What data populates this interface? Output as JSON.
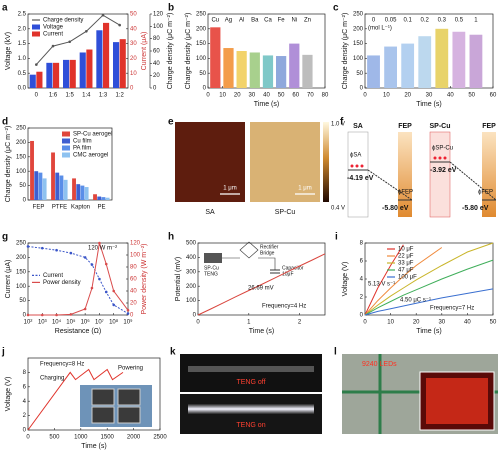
{
  "chart_data": [
    {
      "label": "a",
      "type": "bar",
      "categories": [
        "0",
        "1:6",
        "1:5",
        "1:4",
        "1:3",
        "1:2"
      ],
      "series": [
        {
          "name": "Charge density",
          "type": "line",
          "color": "#555555",
          "axis": "y3",
          "values": [
            38,
            68,
            75,
            92,
            118,
            102
          ]
        },
        {
          "name": "Voltage",
          "color": "#2f4fd8",
          "axis": "y",
          "values": [
            0.45,
            0.85,
            0.95,
            1.2,
            1.95,
            1.55
          ]
        },
        {
          "name": "Current",
          "color": "#e0332b",
          "axis": "y2",
          "values": [
            11,
            17,
            19,
            26,
            44,
            33
          ]
        }
      ],
      "ylabel": "Voltage (kV)",
      "y2label": "Current (μA)",
      "y3label": "Charge density (μC m⁻²)",
      "ylim": [
        0,
        2.5
      ],
      "yticks": [
        {
          "value": 0,
          "label": "0.0"
        },
        0.5,
        {
          "value": 1,
          "label": "1.0"
        },
        1.5,
        {
          "value": 2,
          "label": "2.0"
        },
        2.5
      ],
      "y2lim": [
        0,
        50
      ],
      "y2ticks": [
        0,
        10,
        20,
        30,
        40,
        50
      ],
      "y3lim": [
        0,
        120
      ],
      "y3ticks": [
        0,
        20,
        40,
        60,
        80,
        100,
        120
      ],
      "legend": "top-left",
      "markers": true
    },
    {
      "label": "b",
      "type": "bar",
      "categories": [
        "Cu",
        "Ag",
        "Al",
        "Ba",
        "Ca",
        "Fe",
        "Ni",
        "Zn"
      ],
      "x": [
        5,
        14,
        23,
        32,
        41,
        50,
        59,
        68
      ],
      "values": [
        205,
        135,
        125,
        120,
        110,
        108,
        150,
        112
      ],
      "colors": [
        "#e8534a",
        "#f39c4a",
        "#f2d36a",
        "#a8d08d",
        "#7fc8c8",
        "#8fa8dc",
        "#b08fd8",
        "#bdbdbd"
      ],
      "xlabel": "Time (s)",
      "ylabel": "Charge density (μC m⁻²)",
      "xlim": [
        0,
        80
      ],
      "xticks": [
        0,
        10,
        20,
        30,
        40,
        50,
        60,
        70,
        80
      ],
      "ylim": [
        0,
        250
      ],
      "yticks": [
        0,
        50,
        100,
        150,
        200,
        250
      ]
    },
    {
      "label": "c",
      "type": "bar",
      "categories": [
        "0",
        "0.05",
        "0.1",
        "0.2",
        "0.3",
        "0.5",
        "1"
      ],
      "x": [
        4,
        12,
        20,
        28,
        36,
        44,
        52
      ],
      "values": [
        110,
        140,
        150,
        175,
        200,
        190,
        180
      ],
      "colors": [
        "#9fb8e8",
        "#a9c4ec",
        "#b3d0f0",
        "#bcd8ee",
        "#e8d36a",
        "#d6b3e0",
        "#c9a6d8"
      ],
      "annotations": [
        "(mol L⁻¹)"
      ],
      "xlabel": "Time (s)",
      "ylabel": "Charge density (μC m⁻²)",
      "xlim": [
        0,
        60
      ],
      "xticks": [
        0,
        10,
        20,
        30,
        40,
        50,
        60
      ],
      "ylim": [
        0,
        250
      ],
      "yticks": [
        0,
        50,
        100,
        150,
        200,
        250
      ]
    },
    {
      "label": "d",
      "type": "bar",
      "categories": [
        "FEP",
        "PTFE",
        "Kapton",
        "PE"
      ],
      "series": [
        {
          "name": "SP-Cu aerogel",
          "color": "#e0463c",
          "values": [
            205,
            165,
            75,
            20
          ]
        },
        {
          "name": "Cu film",
          "color": "#3f5fd0",
          "values": [
            100,
            95,
            55,
            12
          ]
        },
        {
          "name": "PA film",
          "color": "#5a8ee8",
          "values": [
            95,
            85,
            50,
            10
          ]
        },
        {
          "name": "CMC aerogel",
          "color": "#8ec2f0",
          "values": [
            75,
            70,
            45,
            8
          ]
        }
      ],
      "ylabel": "Charge density (μC m⁻²)",
      "ylim": [
        0,
        250
      ],
      "yticks": [
        0,
        50,
        100,
        150,
        200,
        250
      ],
      "legend": "top-right"
    },
    {
      "label": "g",
      "type": "line",
      "xlog": true,
      "x": [
        100,
        1000,
        10000,
        100000,
        1000000,
        3000000,
        10000000,
        30000000,
        100000000,
        1000000000
      ],
      "series": [
        {
          "name": "Current",
          "color": "#3a55c8",
          "axis": "y",
          "dash": true,
          "values": [
            238,
            232,
            225,
            215,
            200,
            175,
            125,
            80,
            35,
            5
          ]
        },
        {
          "name": "Power density",
          "color": "#d94c4c",
          "axis": "y2",
          "values": [
            0,
            0,
            0,
            1,
            10,
            45,
            120,
            85,
            40,
            8
          ]
        }
      ],
      "xlim": [
        100,
        1000000000
      ],
      "xticks": [
        {
          "value": 100,
          "label": "10²"
        },
        {
          "value": 1000,
          "label": "10³"
        },
        {
          "value": 10000,
          "label": "10⁴"
        },
        {
          "value": 100000,
          "label": "10⁵"
        },
        {
          "value": 1000000,
          "label": "10⁶"
        },
        {
          "value": 10000000,
          "label": "10⁷"
        },
        {
          "value": 100000000,
          "label": "10⁸"
        },
        {
          "value": 1000000000,
          "label": "10⁹"
        }
      ],
      "ylim": [
        0,
        250
      ],
      "yticks": [
        0,
        50,
        100,
        150,
        200,
        250
      ],
      "y2lim": [
        0,
        120
      ],
      "y2ticks": [
        0,
        20,
        40,
        60,
        80,
        100,
        120
      ],
      "xlabel": "Resistance (Ω)",
      "ylabel": "Current (μA)",
      "y2label": "Power density (W m⁻²)",
      "annotations": [
        "120 W m⁻²"
      ],
      "legend": "left",
      "markers": true
    },
    {
      "label": "h",
      "type": "line",
      "x": [
        0,
        0.25,
        0.5,
        0.75,
        1,
        1.25,
        1.5,
        1.75,
        2,
        2.25,
        2.5
      ],
      "series": [
        {
          "color": "#d9453d",
          "values": [
            0,
            42,
            85,
            128,
            170,
            212,
            255,
            298,
            340,
            382,
            425
          ]
        }
      ],
      "xlim": [
        0,
        2.5
      ],
      "xticks": [
        0,
        1,
        2
      ],
      "ylim": [
        0,
        500
      ],
      "yticks": [
        0,
        100,
        200,
        300,
        400,
        500
      ],
      "xlabel": "Time (s)",
      "ylabel": "Potential (mV)",
      "annotations": [
        "26.69 mV",
        "Frequency=4 Hz"
      ],
      "circuit": [
        "Rectifier",
        "Bridge",
        "SP-Cu",
        "TENG",
        "Capacitor",
        "10μF"
      ]
    },
    {
      "label": "i",
      "type": "line",
      "x": [
        0,
        5,
        10,
        15,
        20,
        30,
        40,
        50
      ],
      "series": [
        {
          "name": "10 μF",
          "color": "#e0332b",
          "values": [
            0,
            3.0,
            5.5,
            7.8,
            null,
            null,
            null,
            null
          ]
        },
        {
          "name": "22 μF",
          "color": "#f08a3c",
          "values": [
            0,
            1.6,
            3.0,
            4.3,
            5.5,
            7.5,
            null,
            null
          ]
        },
        {
          "name": "33 μF",
          "color": "#c9b52a",
          "values": [
            0,
            1.1,
            2.1,
            3.0,
            3.9,
            5.5,
            7.0,
            8.0
          ]
        },
        {
          "name": "47 μF",
          "color": "#3fae5a",
          "values": [
            0,
            0.8,
            1.5,
            2.2,
            2.8,
            4.0,
            5.1,
            6.1
          ]
        },
        {
          "name": "100 μF",
          "color": "#3a6fd0",
          "values": [
            0,
            0.4,
            0.7,
            1.0,
            1.3,
            1.9,
            2.4,
            2.9
          ]
        }
      ],
      "xlim": [
        0,
        50
      ],
      "xticks": [
        0,
        10,
        20,
        30,
        40,
        50
      ],
      "ylim": [
        0,
        8
      ],
      "yticks": [
        0,
        2,
        4,
        6,
        8
      ],
      "xlabel": "Time (s)",
      "ylabel": "Voltage (V)",
      "annotations": [
        "5.13 V s⁻¹",
        "4.50 μC s⁻¹",
        "Frequency=7 Hz"
      ],
      "legend": "top"
    },
    {
      "label": "j",
      "type": "line",
      "x": [
        0,
        800,
        900,
        1150,
        1250,
        1500,
        1600,
        1800
      ],
      "series": [
        {
          "color": "#e0332b",
          "values": [
            0,
            8.0,
            7.0,
            8.4,
            7.0,
            8.4,
            7.0,
            8.0
          ]
        }
      ],
      "xlim": [
        0,
        2500
      ],
      "xticks": [
        0,
        500,
        1000,
        1500,
        2000,
        2500
      ],
      "ylim": [
        0,
        10
      ],
      "yticks": [
        0,
        2,
        4,
        6,
        8
      ],
      "xlabel": "Time (s)",
      "ylabel": "Voltage (V)",
      "annotations": [
        "Frequency=8 Hz",
        "Charging",
        "Powering"
      ]
    }
  ],
  "panel_e": {
    "label": "e",
    "images": [
      "SA",
      "SP-Cu"
    ],
    "scale_bar": "1 μm",
    "colorbar": [
      "1.0 V",
      "0.4 V"
    ]
  },
  "panel_f": {
    "label": "f",
    "materials": [
      "SA",
      "FEP",
      "SP-Cu",
      "FEP"
    ],
    "levels": [
      "-4.19 eV",
      "-5.80 eV",
      "-3.92 eV",
      "-5.80 eV"
    ],
    "phi": [
      "ϕSA",
      "ϕFEP",
      "ϕSP-Cu",
      "ϕFEP"
    ]
  },
  "panel_k": {
    "label": "k",
    "captions": [
      "TENG off",
      "TENG on"
    ]
  },
  "panel_l": {
    "label": "l",
    "caption": "9240 LEDs"
  }
}
